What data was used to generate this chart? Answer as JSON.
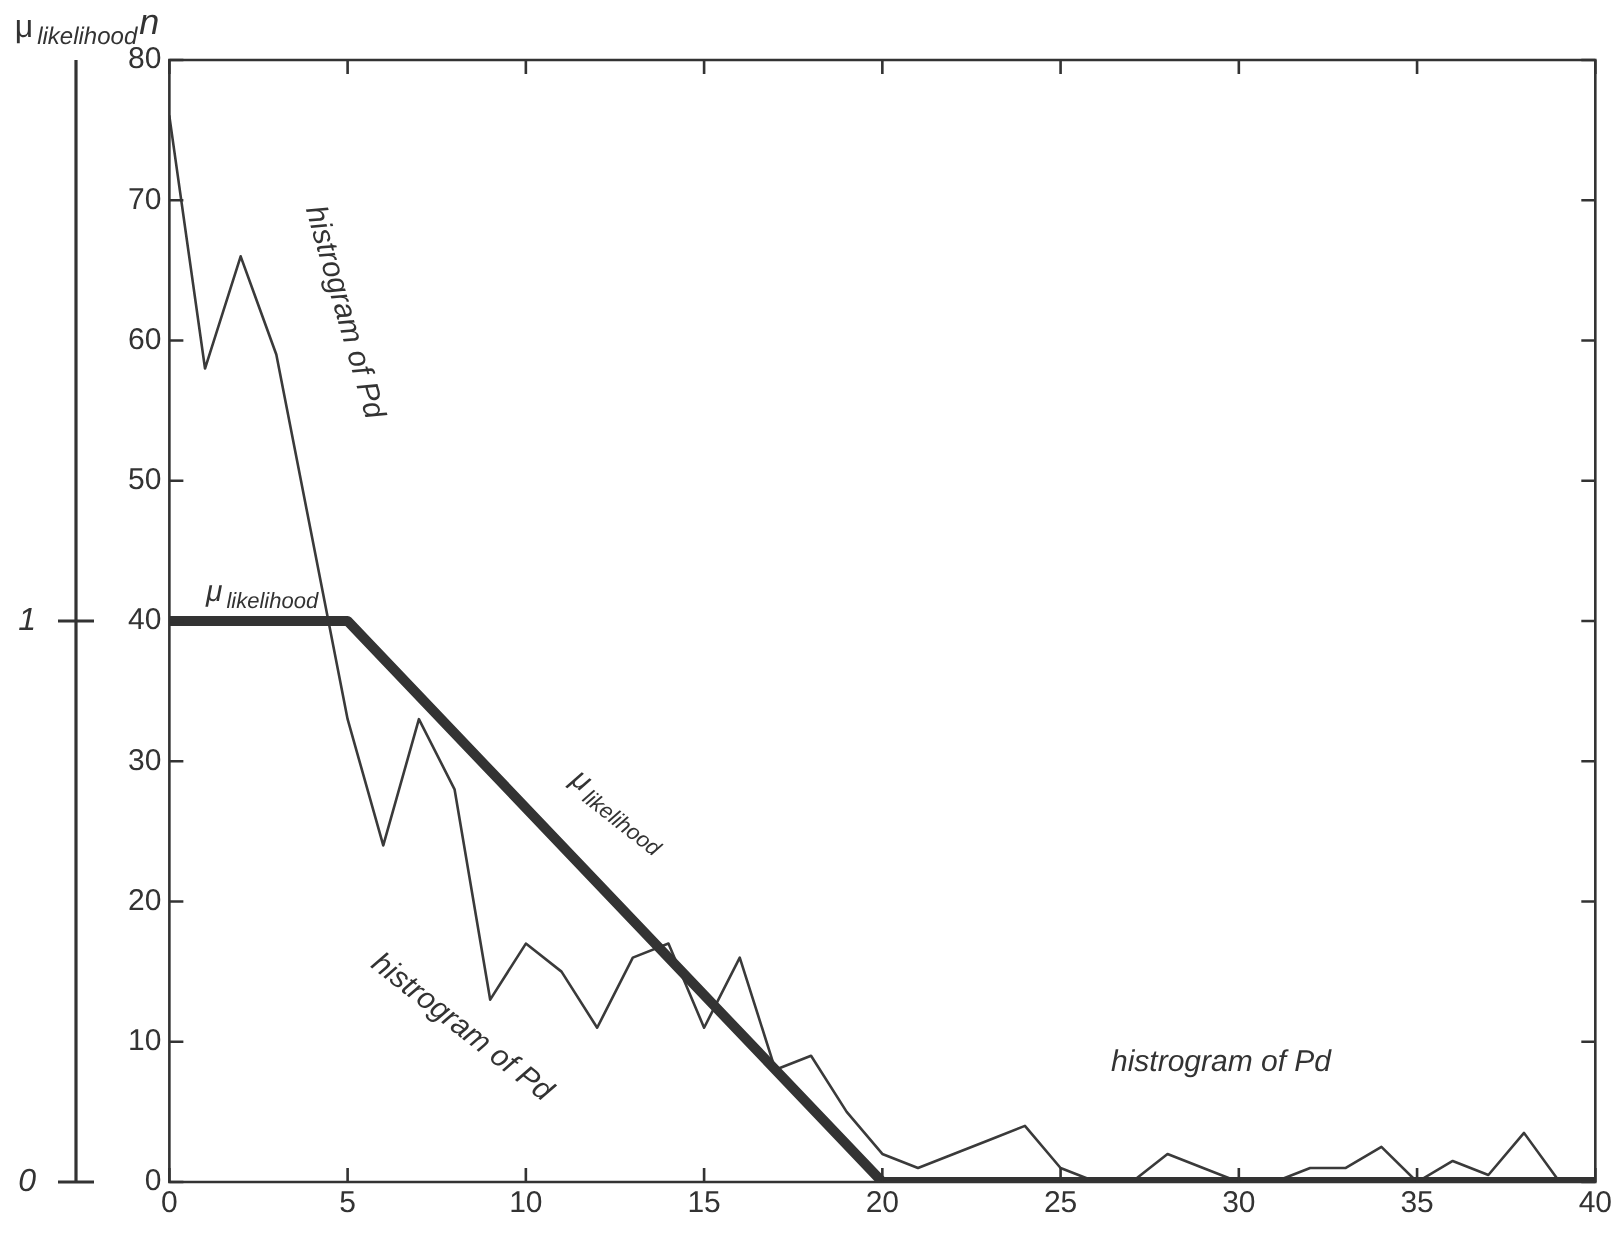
{
  "chart_data": {
    "type": "line",
    "ylabel": "n",
    "y2label": "μ$_{likelihood}$",
    "xlim": [
      0,
      40
    ],
    "xticks": [
      0,
      5,
      10,
      15,
      20,
      25,
      30,
      35,
      40
    ],
    "ylim": [
      0,
      80
    ],
    "yticks": [
      0,
      10,
      20,
      30,
      40,
      50,
      60,
      70,
      80
    ],
    "y2lim": [
      0,
      2
    ],
    "y2ticks": [
      0,
      1
    ],
    "grid": false,
    "legend": false,
    "marker": "none",
    "line_style": "solid",
    "series": [
      {
        "name": "histrogram of Pd",
        "color": "#3a3a3a",
        "x": [
          0,
          1,
          2,
          3,
          4,
          5,
          6,
          7,
          8,
          9,
          10,
          11,
          12,
          13,
          14,
          15,
          16,
          17,
          18,
          19,
          20,
          21,
          22,
          23,
          24,
          25,
          26,
          27,
          28,
          29,
          30,
          31,
          32,
          33,
          34,
          35,
          36,
          37,
          38,
          39
        ],
        "values": [
          76,
          58,
          66,
          59,
          46,
          33,
          24,
          33,
          28,
          13,
          17,
          15,
          11,
          16,
          17,
          11,
          16,
          8,
          9,
          5,
          2,
          1,
          2,
          3,
          4,
          1,
          0,
          0,
          2,
          1,
          0,
          0,
          1,
          1,
          2.5,
          0,
          1.5,
          0.5,
          3.5,
          0
        ]
      },
      {
        "name": "μ$_{likelihood}$",
        "color": "#333333",
        "axis": "y2",
        "x": [
          0,
          5,
          20,
          40
        ],
        "values": [
          1,
          1,
          0,
          0
        ]
      }
    ],
    "annotations": [
      "histrogram of Pd",
      "histrogram of Pd",
      "μ$_{likelihood}$"
    ]
  }
}
